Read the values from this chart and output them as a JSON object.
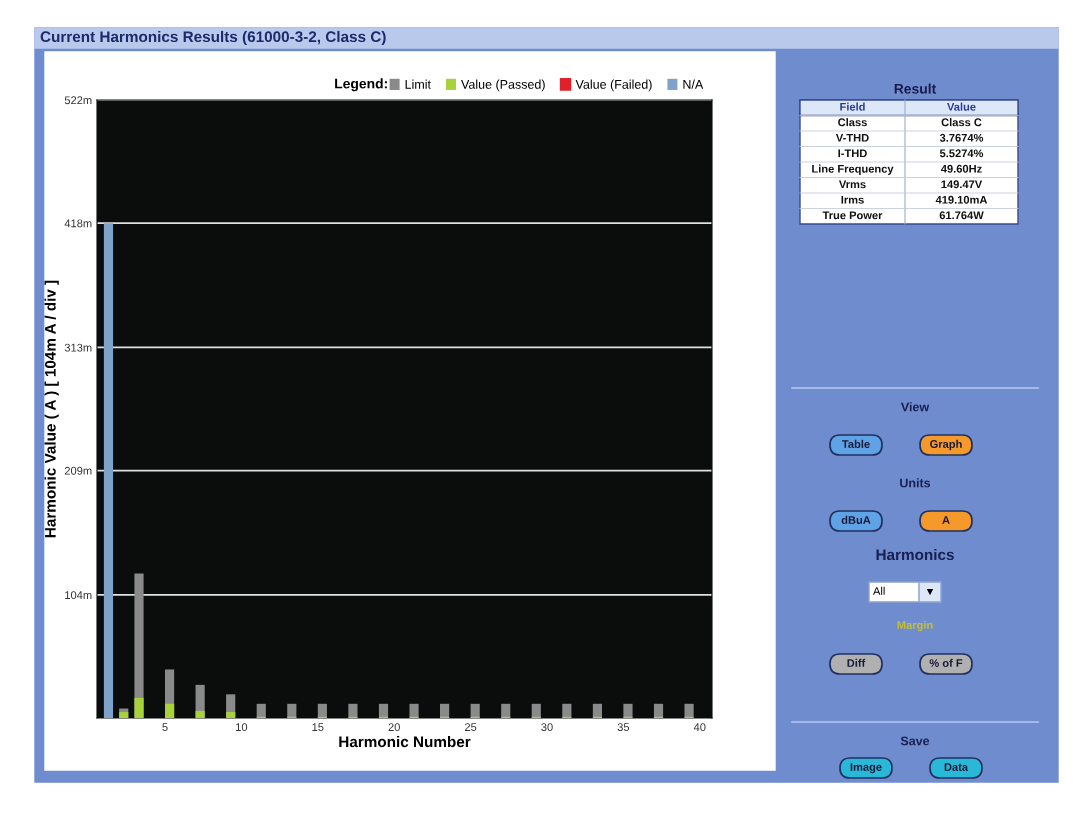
{
  "chart_data": [
    {
      "type": "bar",
      "title": "Current Harmonics Results (61000-3-2, Class C)",
      "xlabel": "Harmonic Number",
      "ylabel": "Harmonic Value ( A ) [ 104m A / div ]",
      "legend_title": "Legend:",
      "x": [
        1,
        2,
        3,
        4,
        5,
        6,
        7,
        8,
        9,
        10,
        11,
        12,
        13,
        14,
        15,
        16,
        17,
        18,
        19,
        20,
        21,
        22,
        23,
        24,
        25,
        26,
        27,
        28,
        29,
        30,
        31,
        32,
        33,
        34,
        35,
        36,
        37,
        38,
        39
      ],
      "series": [
        {
          "name": "Limit",
          "color": "#8a8a8a",
          "values": [
            null,
            8,
            122,
            null,
            41,
            null,
            28,
            null,
            20,
            null,
            12,
            null,
            12,
            null,
            12,
            null,
            12,
            null,
            12,
            null,
            12,
            null,
            12,
            null,
            12,
            null,
            12,
            null,
            12,
            null,
            12,
            null,
            12,
            null,
            12,
            null,
            12,
            null,
            12
          ]
        },
        {
          "name": "Value (Passed)",
          "color": "#a8d23a",
          "values": [
            null,
            5,
            17,
            null,
            12,
            null,
            6,
            null,
            5,
            null,
            1,
            null,
            1,
            null,
            1,
            null,
            1,
            null,
            1,
            null,
            1,
            null,
            1,
            null,
            1,
            null,
            1,
            null,
            1,
            null,
            1,
            null,
            1,
            null,
            1,
            null,
            1,
            null,
            1
          ]
        },
        {
          "name": "Value (Failed)",
          "color": "#e0202a",
          "values": [
            null,
            null,
            null,
            null,
            null,
            null,
            null,
            null,
            null,
            null,
            null,
            null,
            null,
            null,
            null,
            null,
            null,
            null,
            null,
            null,
            null,
            null,
            null,
            null,
            null,
            null,
            null,
            null,
            null,
            null,
            null,
            null,
            null,
            null,
            null,
            null,
            null,
            null,
            null
          ]
        },
        {
          "name": "N/A",
          "color": "#7fa3c8",
          "values": [
            418,
            null,
            null,
            null,
            null,
            null,
            null,
            null,
            null,
            null,
            null,
            null,
            null,
            null,
            null,
            null,
            null,
            null,
            null,
            null,
            null,
            null,
            null,
            null,
            null,
            null,
            null,
            null,
            null,
            null,
            null,
            null,
            null,
            null,
            null,
            null,
            null,
            null,
            null
          ]
        }
      ],
      "xlim": [
        0.55,
        40.8
      ],
      "xticks": [
        5,
        10,
        15,
        20,
        25,
        30,
        35,
        40
      ],
      "ylim": [
        0,
        522
      ],
      "yticks": [
        {
          "value": 104,
          "label": "104m"
        },
        {
          "value": 209,
          "label": "209m"
        },
        {
          "value": 313,
          "label": "313m"
        },
        {
          "value": 418,
          "label": "418m"
        },
        {
          "value": 522,
          "label": "522m"
        }
      ],
      "grid": "y",
      "legend": "top"
    },
    {
      "type": "other",
      "title": "Result",
      "annotations": [
        "Field",
        "Value",
        "Class",
        "Class C",
        "V-THD",
        "3.7674%",
        "I-THD",
        "5.5274%",
        "Line Frequency",
        "49.60Hz",
        "Vrms",
        "149.47V",
        "Irms",
        "419.10mA",
        "True Power",
        "61.764W",
        "View",
        "Table",
        "Graph",
        "Units",
        "dBuA",
        "A",
        "Harmonics",
        "All",
        "▼",
        "Margin",
        "Diff",
        "% of F",
        "Save",
        "Image",
        "Data"
      ]
    }
  ]
}
